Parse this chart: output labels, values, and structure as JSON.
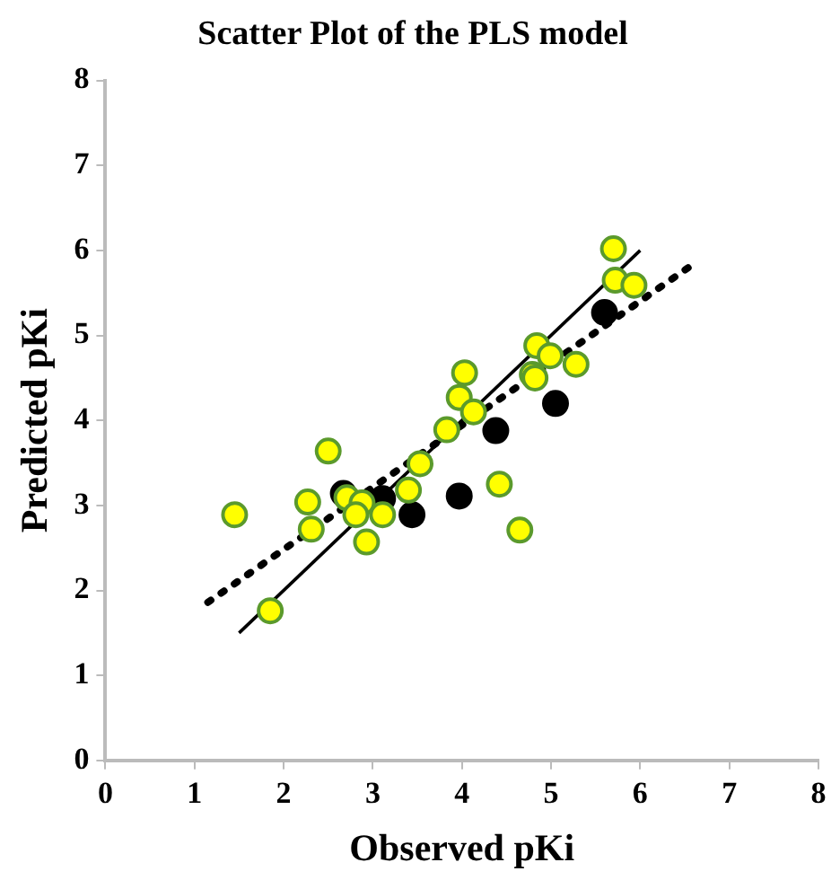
{
  "chart_data": {
    "type": "scatter",
    "title": "Scatter Plot of the PLS model",
    "xlabel": "Observed pKi",
    "ylabel": "Predicted pKi",
    "xlim": [
      0,
      8
    ],
    "ylim": [
      0,
      8
    ],
    "xticks": [
      0,
      1,
      2,
      3,
      4,
      5,
      6,
      7,
      8
    ],
    "yticks": [
      0,
      1,
      2,
      3,
      4,
      5,
      6,
      7,
      8
    ],
    "grid": false,
    "legend": false,
    "marker": "circle",
    "series": [
      {
        "color": "#ffff00",
        "x": [
          1.45,
          1.85,
          2.5,
          2.27,
          2.31,
          2.71,
          2.88,
          2.81,
          3.11,
          2.93,
          3.4,
          3.53,
          3.83,
          3.97,
          4.03,
          4.13,
          4.42,
          4.65,
          4.79,
          4.84,
          4.99,
          4.82,
          5.28,
          5.7,
          5.72,
          5.93
        ],
        "values": [
          2.89,
          1.76,
          3.64,
          3.04,
          2.72,
          3.09,
          3.03,
          2.89,
          2.89,
          2.57,
          3.18,
          3.49,
          3.89,
          4.27,
          4.56,
          4.1,
          3.25,
          2.71,
          4.54,
          4.88,
          4.76,
          4.5,
          4.66,
          6.02,
          5.65,
          5.59
        ]
      },
      {
        "color": "#000000",
        "x": [
          2.67,
          3.11,
          3.44,
          3.97,
          4.38,
          5.05,
          5.6
        ],
        "values": [
          3.14,
          3.08,
          2.89,
          3.11,
          3.88,
          4.2,
          5.27
        ]
      },
      {
        "type": "line",
        "color": "#000000",
        "line_style": "solid",
        "marker": "none",
        "x": [
          1.5,
          6.0
        ],
        "values": [
          1.5,
          6.0
        ]
      },
      {
        "type": "line",
        "color": "#000000",
        "line_style": "dotted",
        "marker": "none",
        "x": [
          1.15,
          6.57
        ],
        "values": [
          1.86,
          5.82
        ]
      }
    ]
  }
}
